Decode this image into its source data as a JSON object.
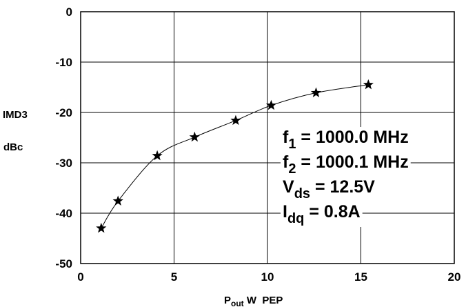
{
  "chart_data": {
    "type": "line",
    "title": "",
    "xlabel": {
      "main": "P",
      "sub": "out",
      "rest": " W  PEP"
    },
    "ylabel": [
      "IMD3",
      "dBc"
    ],
    "xlim": [
      0,
      20
    ],
    "ylim": [
      -50,
      0
    ],
    "x_ticks": [
      0,
      5,
      10,
      15,
      20
    ],
    "y_ticks": [
      0,
      -10,
      -20,
      -30,
      -40,
      -50
    ],
    "x_tick_labels": [
      "0",
      "5",
      "10",
      "15",
      "20"
    ],
    "y_tick_labels": [
      "0",
      "-10",
      "-20",
      "-30",
      "-40",
      "-50"
    ],
    "grid": true,
    "marker": "star",
    "series": [
      {
        "x": [
          1.1,
          2.0,
          4.1,
          6.1,
          8.3,
          10.2,
          12.6,
          15.4
        ],
        "y": [
          -43.0,
          -37.6,
          -28.6,
          -24.9,
          -21.6,
          -18.6,
          -16.1,
          -14.5
        ]
      }
    ],
    "annotations": [
      {
        "main": "f",
        "sub": "1",
        "rest": "  = 1000.0 MHz"
      },
      {
        "main": "f",
        "sub": "2",
        "rest": "  = 1000.1 MHz"
      },
      {
        "main": "V",
        "sub": "ds",
        "rest": " = 12.5V"
      },
      {
        "main": "I",
        "sub": "dq",
        "rest": " = 0.8A"
      }
    ]
  }
}
